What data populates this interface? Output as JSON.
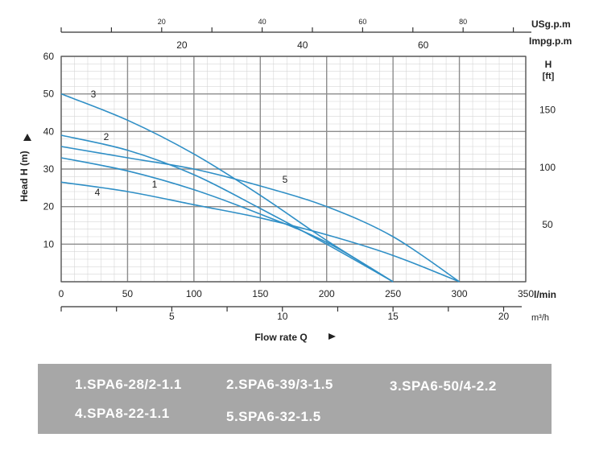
{
  "chart_data": {
    "type": "line",
    "xlabel": "Flow rate Q",
    "ylabel": "Head H (m)",
    "x_unit": "l/min",
    "xlim": [
      0,
      350
    ],
    "ylim": [
      0,
      60
    ],
    "x_ticks": [
      "0",
      "50",
      "100",
      "150",
      "200",
      "250",
      "300",
      "350"
    ],
    "y_ticks": [
      "10",
      "20",
      "30",
      "40",
      "50",
      "60"
    ],
    "secondary_axes": {
      "usgpm": {
        "label": "USg.p.m",
        "ticks": [
          "20",
          "40",
          "60",
          "80"
        ]
      },
      "impgpm": {
        "label": "Impg.p.m",
        "ticks": [
          "20",
          "40",
          "60"
        ]
      },
      "m3h": {
        "label": "m³/h",
        "ticks": [
          "5",
          "10",
          "15",
          "20"
        ]
      },
      "ft": {
        "label_top": "H",
        "label_bottom": "[ft]",
        "ticks": [
          "150",
          "100",
          "50"
        ]
      }
    },
    "grid": true,
    "series": [
      {
        "name": "1",
        "x": [
          0,
          50,
          100,
          150,
          200,
          250
        ],
        "y": [
          33,
          29.5,
          24.5,
          18,
          10.5,
          0
        ]
      },
      {
        "name": "2",
        "x": [
          0,
          50,
          100,
          150,
          200,
          250
        ],
        "y": [
          39,
          35,
          28.5,
          19.5,
          10,
          0
        ]
      },
      {
        "name": "3",
        "x": [
          0,
          50,
          100,
          150,
          200,
          250
        ],
        "y": [
          50,
          43,
          34,
          23,
          11,
          0
        ]
      },
      {
        "name": "4",
        "x": [
          0,
          50,
          100,
          150,
          200,
          250,
          300
        ],
        "y": [
          26.5,
          24,
          20.5,
          17,
          12.5,
          7,
          0
        ]
      },
      {
        "name": "5",
        "x": [
          0,
          50,
          100,
          150,
          200,
          250,
          300
        ],
        "y": [
          36,
          33,
          30,
          25.5,
          20,
          12,
          0
        ]
      }
    ]
  },
  "legend": {
    "items": [
      "1.SPA6-28/2-1.1",
      "2.SPA6-39/3-1.5",
      "3.SPA6-50/4-2.2",
      "4.SPA8-22-1.1",
      "5.SPA6-32-1.5"
    ]
  },
  "colors": {
    "curve": "#2f8fc6",
    "grid_major": "#8d8d8d",
    "grid_minor": "#d6d6d6",
    "legend_bg": "#a7a7a7"
  }
}
